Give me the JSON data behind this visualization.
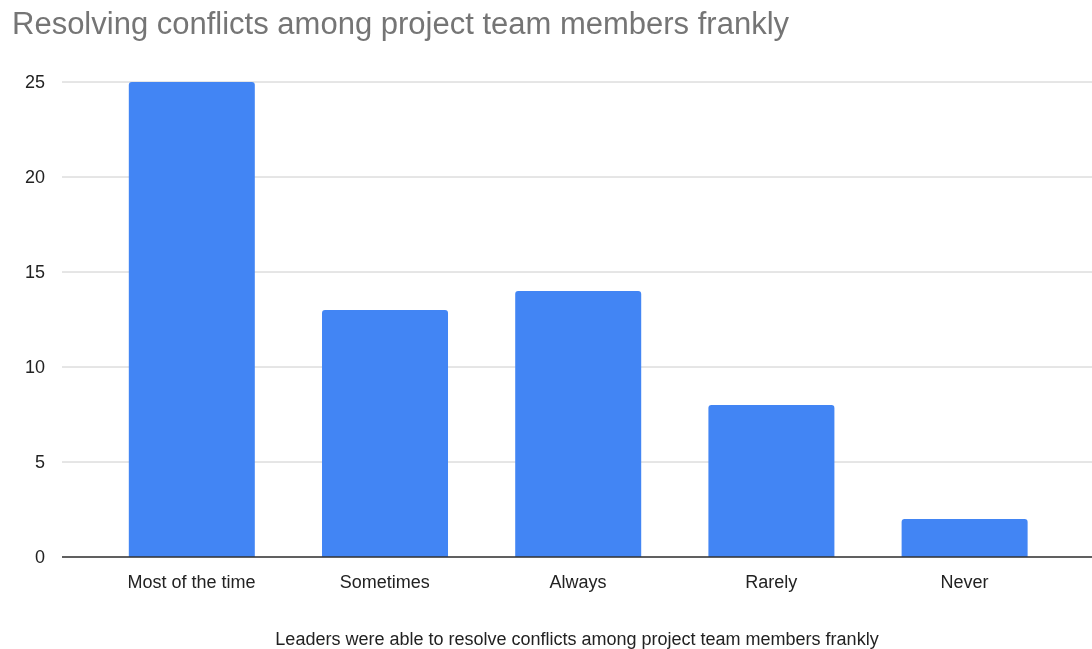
{
  "chart_data": {
    "type": "bar",
    "title": "Resolving conflicts among project team members frankly",
    "xlabel": "Leaders were able to resolve conflicts among project team members frankly",
    "categories": [
      "Most of the time",
      "Sometimes",
      "Always",
      "Rarely",
      "Never"
    ],
    "values": [
      25,
      13,
      14,
      8,
      2
    ],
    "color": "#4285f4",
    "ylim": [
      0,
      25
    ],
    "yticks": [
      0,
      5,
      10,
      15,
      20,
      25
    ],
    "grid": "y"
  }
}
